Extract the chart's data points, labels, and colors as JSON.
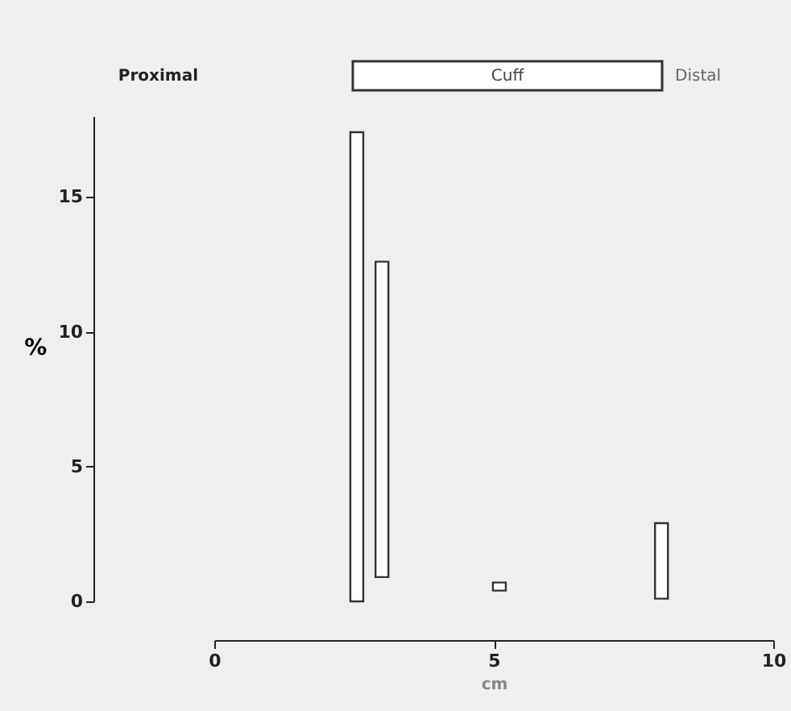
{
  "chart_data": {
    "type": "bar",
    "x": [
      2.55,
      3.0,
      5.1,
      8.0
    ],
    "base": [
      0,
      0.9,
      0.4,
      0.1
    ],
    "values": [
      17.4,
      11.7,
      0.3,
      2.8
    ],
    "color": "#ffffff",
    "xlim": [
      0,
      10
    ],
    "xticks": [
      0,
      5,
      10
    ],
    "ylim": [
      0,
      18
    ],
    "yticks": [
      0,
      5,
      10,
      15
    ],
    "xlabel": "cm",
    "ylabel": "%",
    "annotations": [
      "Proximal",
      "Cuff",
      "Distal"
    ],
    "grid": false
  }
}
